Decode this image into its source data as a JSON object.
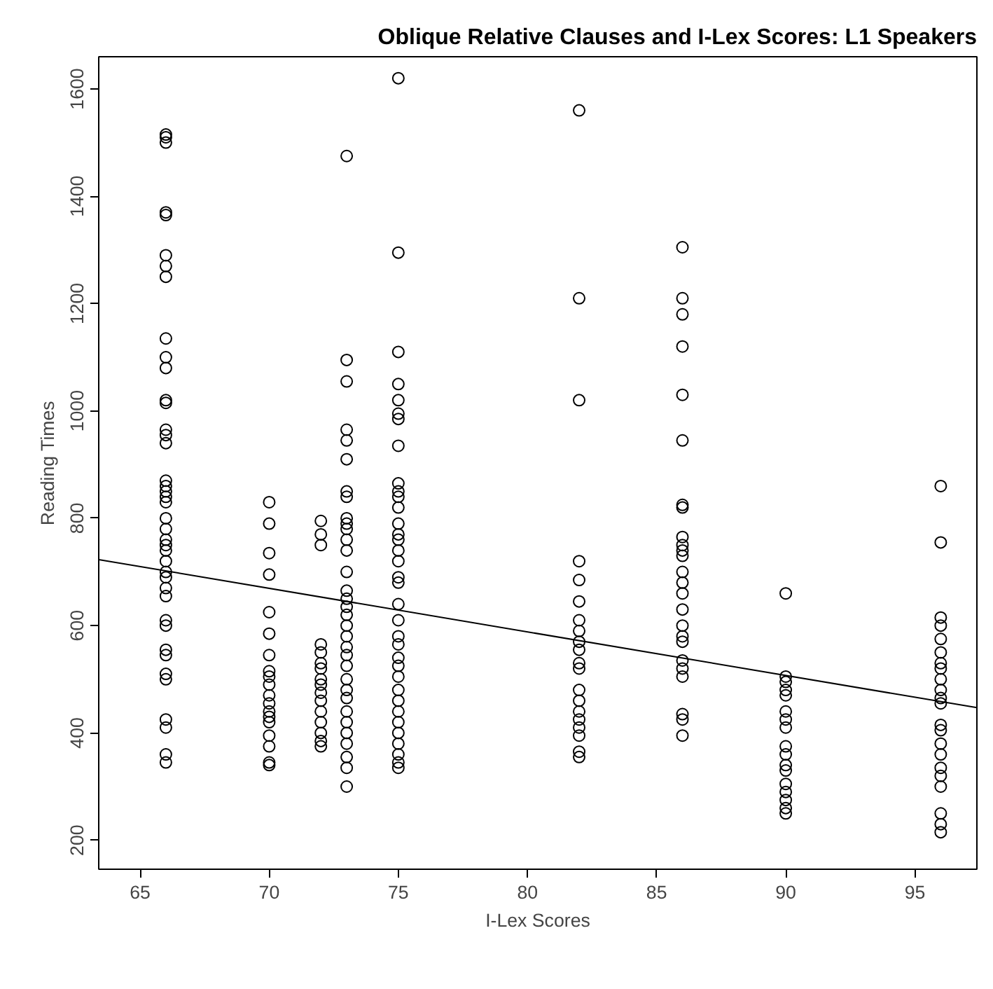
{
  "chart_data": {
    "type": "scatter",
    "title": "Oblique Relative Clauses and I-Lex Scores: L1 Speakers",
    "xlabel": "I-Lex Scores",
    "ylabel": "Reading Times",
    "xlim": [
      63.4,
      97.4
    ],
    "ylim": [
      146,
      1660
    ],
    "xticks": [
      65,
      70,
      75,
      80,
      85,
      90,
      95
    ],
    "yticks": [
      200,
      400,
      600,
      800,
      1000,
      1200,
      1400,
      1600
    ],
    "grid": false,
    "series": [
      {
        "marker": "circle",
        "color": "#000000",
        "x": [
          66,
          66,
          66,
          66,
          66,
          66,
          66,
          66,
          66,
          66,
          66,
          66,
          66,
          66,
          66,
          66,
          66,
          66,
          66,
          66,
          66,
          66,
          66,
          66,
          66,
          66,
          66,
          66,
          66,
          66,
          66,
          66,
          66,
          66,
          66,
          66,
          66,
          66,
          66,
          66,
          66,
          70,
          70,
          70,
          70,
          70,
          70,
          70,
          70,
          70,
          70,
          70,
          70,
          70,
          70,
          70,
          70,
          70,
          70,
          70,
          72,
          72,
          72,
          72,
          72,
          72,
          72,
          72,
          72,
          72,
          72,
          72,
          72,
          72,
          72,
          72,
          73,
          73,
          73,
          73,
          73,
          73,
          73,
          73,
          73,
          73,
          73,
          73,
          73,
          73,
          73,
          73,
          73,
          73,
          73,
          73,
          73,
          73,
          73,
          73,
          73,
          73,
          73,
          73,
          73,
          73,
          73,
          73,
          73,
          75,
          75,
          75,
          75,
          75,
          75,
          75,
          75,
          75,
          75,
          75,
          75,
          75,
          75,
          75,
          75,
          75,
          75,
          75,
          75,
          75,
          75,
          75,
          75,
          75,
          75,
          75,
          75,
          75,
          75,
          75,
          75,
          75,
          75,
          75,
          82,
          82,
          82,
          82,
          82,
          82,
          82,
          82,
          82,
          82,
          82,
          82,
          82,
          82,
          82,
          82,
          82,
          82,
          82,
          82,
          86,
          86,
          86,
          86,
          86,
          86,
          86,
          86,
          86,
          86,
          86,
          86,
          86,
          86,
          86,
          86,
          86,
          86,
          86,
          86,
          86,
          86,
          86,
          86,
          86,
          90,
          90,
          90,
          90,
          90,
          90,
          90,
          90,
          90,
          90,
          90,
          90,
          90,
          90,
          90,
          90,
          90,
          96,
          96,
          96,
          96,
          96,
          96,
          96,
          96,
          96,
          96,
          96,
          96,
          96,
          96,
          96,
          96,
          96,
          96,
          96,
          96,
          96,
          96
        ],
        "values": [
          1515,
          1510,
          1500,
          1370,
          1365,
          1290,
          1270,
          1250,
          1135,
          1100,
          1080,
          1020,
          1015,
          965,
          955,
          940,
          870,
          860,
          850,
          840,
          830,
          800,
          780,
          760,
          750,
          740,
          720,
          700,
          690,
          670,
          655,
          610,
          600,
          555,
          545,
          510,
          500,
          425,
          410,
          360,
          345,
          830,
          790,
          735,
          695,
          625,
          585,
          545,
          515,
          505,
          490,
          470,
          455,
          440,
          430,
          420,
          395,
          375,
          345,
          340,
          795,
          770,
          750,
          565,
          550,
          530,
          520,
          500,
          490,
          475,
          460,
          440,
          420,
          400,
          385,
          375,
          1475,
          1095,
          1055,
          965,
          945,
          910,
          850,
          840,
          800,
          790,
          780,
          760,
          740,
          700,
          665,
          650,
          635,
          620,
          600,
          580,
          560,
          545,
          525,
          500,
          480,
          465,
          440,
          420,
          400,
          380,
          355,
          335,
          300,
          1620,
          1295,
          1110,
          1050,
          1020,
          995,
          985,
          935,
          865,
          850,
          840,
          820,
          790,
          770,
          760,
          740,
          720,
          690,
          680,
          640,
          610,
          580,
          565,
          540,
          525,
          505,
          480,
          460,
          440,
          420,
          400,
          380,
          360,
          345,
          335,
          1560,
          1210,
          1020,
          720,
          685,
          645,
          610,
          590,
          570,
          555,
          530,
          520,
          480,
          460,
          440,
          425,
          410,
          395,
          365,
          355,
          1305,
          1210,
          1180,
          1120,
          1030,
          945,
          825,
          820,
          765,
          750,
          740,
          730,
          700,
          680,
          660,
          630,
          600,
          580,
          570,
          535,
          520,
          505,
          435,
          425,
          395,
          660,
          505,
          495,
          480,
          470,
          440,
          425,
          410,
          375,
          360,
          340,
          330,
          305,
          290,
          275,
          260,
          250,
          860,
          755,
          615,
          600,
          575,
          550,
          530,
          520,
          500,
          480,
          465,
          455,
          415,
          405,
          380,
          360,
          335,
          320,
          300,
          250,
          230,
          215
        ]
      },
      {
        "type": "line",
        "color": "#000000",
        "x": [
          63.4,
          97.4
        ],
        "values": [
          723,
          447
        ]
      }
    ]
  }
}
